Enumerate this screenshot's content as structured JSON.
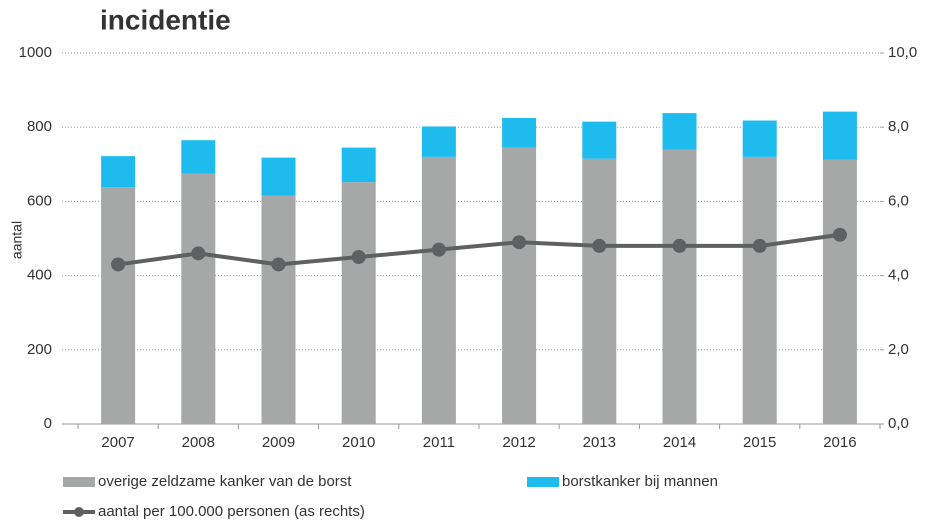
{
  "chart_data": {
    "type": "bar",
    "title": "incidentie",
    "ylabel": "aantal",
    "categories": [
      "2007",
      "2008",
      "2009",
      "2010",
      "2011",
      "2012",
      "2013",
      "2014",
      "2015",
      "2016"
    ],
    "series": [
      {
        "name": "overige zeldzame kanker van de borst",
        "color": "#a6a8a8",
        "values": [
          638,
          675,
          615,
          652,
          720,
          745,
          715,
          740,
          720,
          712
        ]
      },
      {
        "name": "borstkanker bij mannen",
        "color": "#1ebbee",
        "values": [
          84,
          90,
          103,
          93,
          82,
          80,
          100,
          98,
          98,
          130
        ]
      },
      {
        "name": "aantal per 100.000 personen (as rechts)",
        "type": "line",
        "axis": "y2",
        "color": "#5f6062",
        "values": [
          4.3,
          4.6,
          4.3,
          4.5,
          4.7,
          4.9,
          4.8,
          4.8,
          4.8,
          5.1
        ]
      }
    ],
    "stacked": true,
    "ylim": [
      0,
      1000
    ],
    "yticks": [
      0,
      200,
      400,
      600,
      800,
      1000
    ],
    "y2lim": [
      0,
      10
    ],
    "y2ticks": [
      {
        "value": 0,
        "label": "0,0"
      },
      {
        "value": 2,
        "label": "2,0"
      },
      {
        "value": 4,
        "label": "4,0"
      },
      {
        "value": 6,
        "label": "6,0"
      },
      {
        "value": 8,
        "label": "8,0"
      },
      {
        "value": 10,
        "label": "10,0"
      }
    ],
    "grid": true,
    "legend": "bottom"
  }
}
